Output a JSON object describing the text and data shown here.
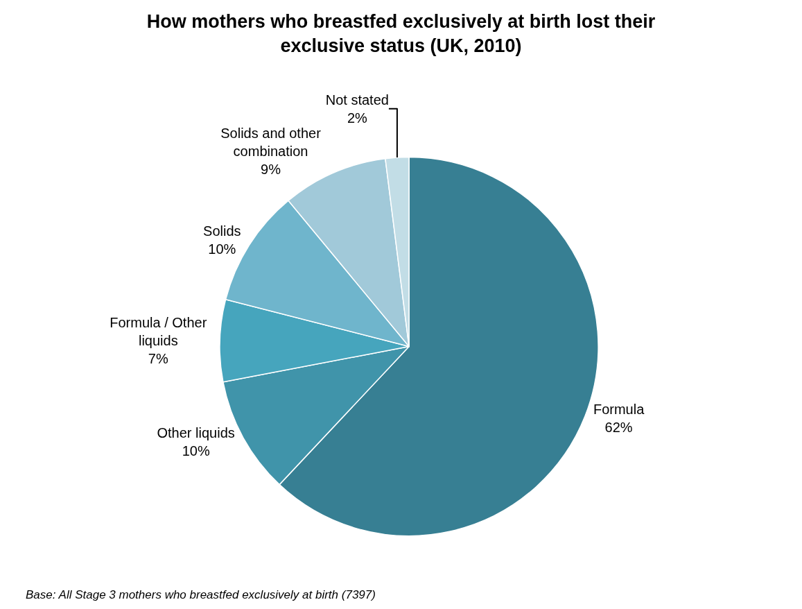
{
  "chart_data": {
    "type": "pie",
    "title": "How mothers who breastfed exclusively at birth lost their exclusive status (UK, 2010)",
    "categories": [
      "Formula",
      "Other liquids",
      "Formula / Other liquids",
      "Solids",
      "Solids and other combination",
      "Not stated"
    ],
    "values": [
      62,
      10,
      7,
      10,
      9,
      2
    ],
    "value_labels": [
      "62%",
      "10%",
      "7%",
      "10%",
      "9%",
      "2%"
    ],
    "colors": [
      "#377f93",
      "#4094aa",
      "#46a5bd",
      "#6fb5cc",
      "#a1c9d9",
      "#c2dde6"
    ],
    "legend": false,
    "annotations": [
      "Base: All Stage 3 mothers who breastfed exclusively at birth (7397)"
    ]
  }
}
